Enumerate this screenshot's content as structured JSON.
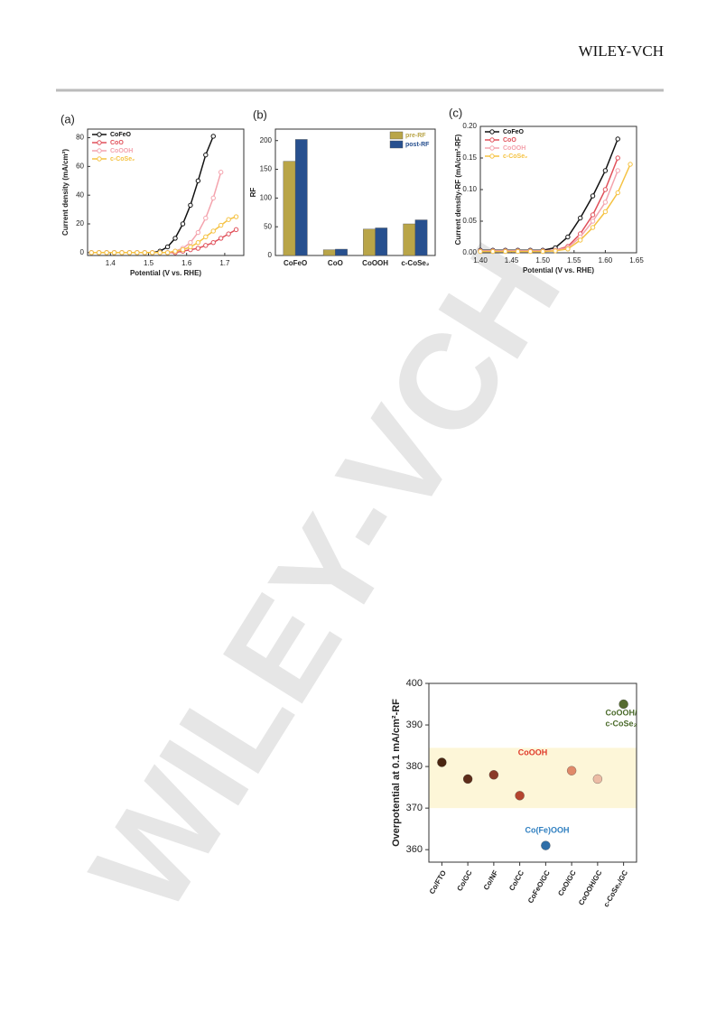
{
  "header": {
    "brand": "WILEY-VCH"
  },
  "watermark": "WILEY-VCH",
  "chart_data": [
    {
      "type": "line",
      "panel": "(a)",
      "x_label": "Potential (V vs. RHE)",
      "y_label": "Current density (mA/cm²)",
      "x": [
        1.35,
        1.37,
        1.39,
        1.41,
        1.43,
        1.45,
        1.47,
        1.49,
        1.51,
        1.53,
        1.55,
        1.57,
        1.59,
        1.61,
        1.63,
        1.65,
        1.67,
        1.69,
        1.71,
        1.73
      ],
      "series": [
        {
          "name": "CoFeO",
          "color": "#111111",
          "values": [
            0,
            0,
            0,
            0,
            0,
            0,
            0,
            0,
            0,
            1,
            4,
            10,
            20,
            33,
            50,
            68,
            81,
            null,
            null,
            null
          ]
        },
        {
          "name": "CoO",
          "color": "#e0505a",
          "values": [
            0,
            0,
            0,
            0,
            0,
            0,
            0,
            0,
            0,
            0,
            0,
            0,
            1,
            2,
            3,
            5,
            7,
            10,
            13,
            16
          ]
        },
        {
          "name": "CoOOH",
          "color": "#f4a3ad",
          "values": [
            0,
            0,
            0,
            0,
            0,
            0,
            0,
            0,
            0,
            0,
            0,
            1,
            3,
            7,
            14,
            24,
            38,
            56,
            null,
            null
          ]
        },
        {
          "name": "c-CoSe₂",
          "color": "#f5c242",
          "values": [
            0,
            0,
            0,
            0,
            0,
            0,
            0,
            0,
            0,
            0,
            0,
            1,
            2,
            4,
            7,
            11,
            15,
            19,
            23,
            25
          ]
        }
      ],
      "xlim": [
        1.34,
        1.75
      ],
      "xticks": [
        1.4,
        1.5,
        1.6,
        1.7
      ],
      "ylim": [
        -2,
        86
      ],
      "yticks": [
        0,
        20,
        40,
        60,
        80
      ],
      "legend": "upper left"
    },
    {
      "type": "bar",
      "panel": "(b)",
      "y_label": "RF",
      "categories": [
        "CoFeO",
        "CoO",
        "CoOOH",
        "c-CoSe₂"
      ],
      "series": [
        {
          "name": "pre-RF",
          "color": "#b9a548",
          "values": [
            164,
            10,
            46,
            55
          ]
        },
        {
          "name": "post-RF",
          "color": "#27508f",
          "values": [
            202,
            11,
            48,
            62
          ]
        }
      ],
      "ylim": [
        0,
        220
      ],
      "yticks": [
        0,
        50,
        100,
        150,
        200
      ],
      "legend": "upper right"
    },
    {
      "type": "line",
      "panel": "(c)",
      "x_label": "Potential (V vs. RHE)",
      "y_label": "Current density-RF (mA/cm²-RF)",
      "x": [
        1.4,
        1.42,
        1.44,
        1.46,
        1.48,
        1.5,
        1.52,
        1.54,
        1.56,
        1.58,
        1.6,
        1.62,
        1.64
      ],
      "series": [
        {
          "name": "CoFeO",
          "color": "#111111",
          "values": [
            0.004,
            0.004,
            0.004,
            0.004,
            0.004,
            0.004,
            0.008,
            0.025,
            0.055,
            0.09,
            0.13,
            0.18,
            null
          ]
        },
        {
          "name": "CoO",
          "color": "#e0505a",
          "values": [
            0.003,
            0.003,
            0.003,
            0.003,
            0.003,
            0.003,
            0.004,
            0.01,
            0.03,
            0.06,
            0.1,
            0.15,
            null
          ]
        },
        {
          "name": "CoOOH",
          "color": "#f4a3ad",
          "values": [
            0.003,
            0.003,
            0.003,
            0.003,
            0.003,
            0.003,
            0.004,
            0.008,
            0.025,
            0.05,
            0.08,
            0.13,
            null
          ]
        },
        {
          "name": "c-CoSe₂",
          "color": "#f5c242",
          "values": [
            0.002,
            0.002,
            0.002,
            0.002,
            0.002,
            0.002,
            0.003,
            0.006,
            0.02,
            0.04,
            0.065,
            0.095,
            0.14
          ]
        }
      ],
      "xlim": [
        1.4,
        1.65
      ],
      "xticks": [
        {
          "value": 1.4,
          "label": "1.40"
        },
        1.45,
        {
          "value": 1.5,
          "label": "1.50"
        },
        1.55,
        {
          "value": 1.6,
          "label": "1.60"
        },
        1.65
      ],
      "ylim": [
        0,
        0.2
      ],
      "yticks": [
        {
          "value": 0,
          "label": "0.00"
        },
        0.05,
        {
          "value": 0.1,
          "label": "0.10"
        },
        0.15,
        {
          "value": 0.2,
          "label": "0.20"
        }
      ],
      "legend": "upper left"
    },
    {
      "type": "scatter",
      "y_label": "Overpotential at 0.1 mA/cm²-RF",
      "categories": [
        "Co/FTO",
        "Co/GC",
        "Co/NF",
        "Co/CC",
        "CoFeO/GC",
        "CoO/GC",
        "CoOOH/GC",
        "c-CoSe₂/GC"
      ],
      "values": [
        381,
        377,
        378,
        373,
        361,
        379,
        377,
        395
      ],
      "colors": [
        "#4a2510",
        "#5e2d1a",
        "#8a3a28",
        "#b5452f",
        "#2f6fa8",
        "#e08a6a",
        "#ecbca5",
        "#556b2f"
      ],
      "band": [
        370,
        384.5
      ],
      "band_color": "#fdf6d8",
      "annotations": [
        {
          "text": [
            "CoOOH"
          ],
          "color": "#e03a2a"
        },
        {
          "text": [
            "Co(Fe)OOH"
          ],
          "color": "#2f7fc0"
        },
        {
          "text": [
            "CoOOH/",
            "c-CoSe₂"
          ],
          "color": "#4a6a2a"
        }
      ],
      "ylim": [
        357,
        400
      ],
      "yticks": [
        360,
        370,
        380,
        390,
        400
      ]
    }
  ]
}
